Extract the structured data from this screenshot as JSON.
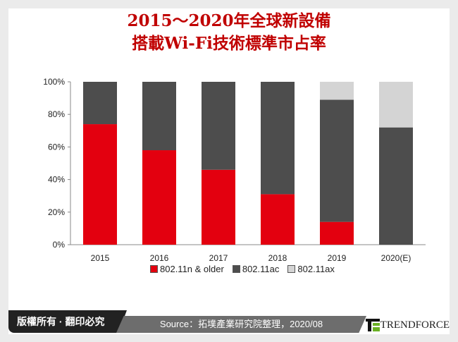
{
  "title": {
    "line1": "2015～2020年全球新設備",
    "line2": "搭載Wi-Fi技術標準市占率"
  },
  "chart_data": {
    "type": "bar",
    "stacked": true,
    "categories": [
      "2015",
      "2016",
      "2017",
      "2018",
      "2019",
      "2020(E)"
    ],
    "series": [
      {
        "name": "802.11n & older",
        "color": "#e3000f",
        "values": [
          74,
          58,
          46,
          31,
          14,
          0
        ]
      },
      {
        "name": "802.11ac",
        "color": "#4d4d4d",
        "values": [
          26,
          42,
          54,
          69,
          75,
          72
        ]
      },
      {
        "name": "802.11ax",
        "color": "#d4d4d4",
        "values": [
          0,
          0,
          0,
          0,
          11,
          28
        ]
      }
    ],
    "ylim": [
      0,
      100
    ],
    "yticks": [
      "0%",
      "20%",
      "40%",
      "60%",
      "80%",
      "100%"
    ],
    "legend_position": "bottom",
    "grid": false
  },
  "footer": {
    "copyright": "版權所有 · 翻印必究",
    "source": "Source：拓墣產業研究院整理，2020/08",
    "brand": "TRENDFORCE"
  }
}
